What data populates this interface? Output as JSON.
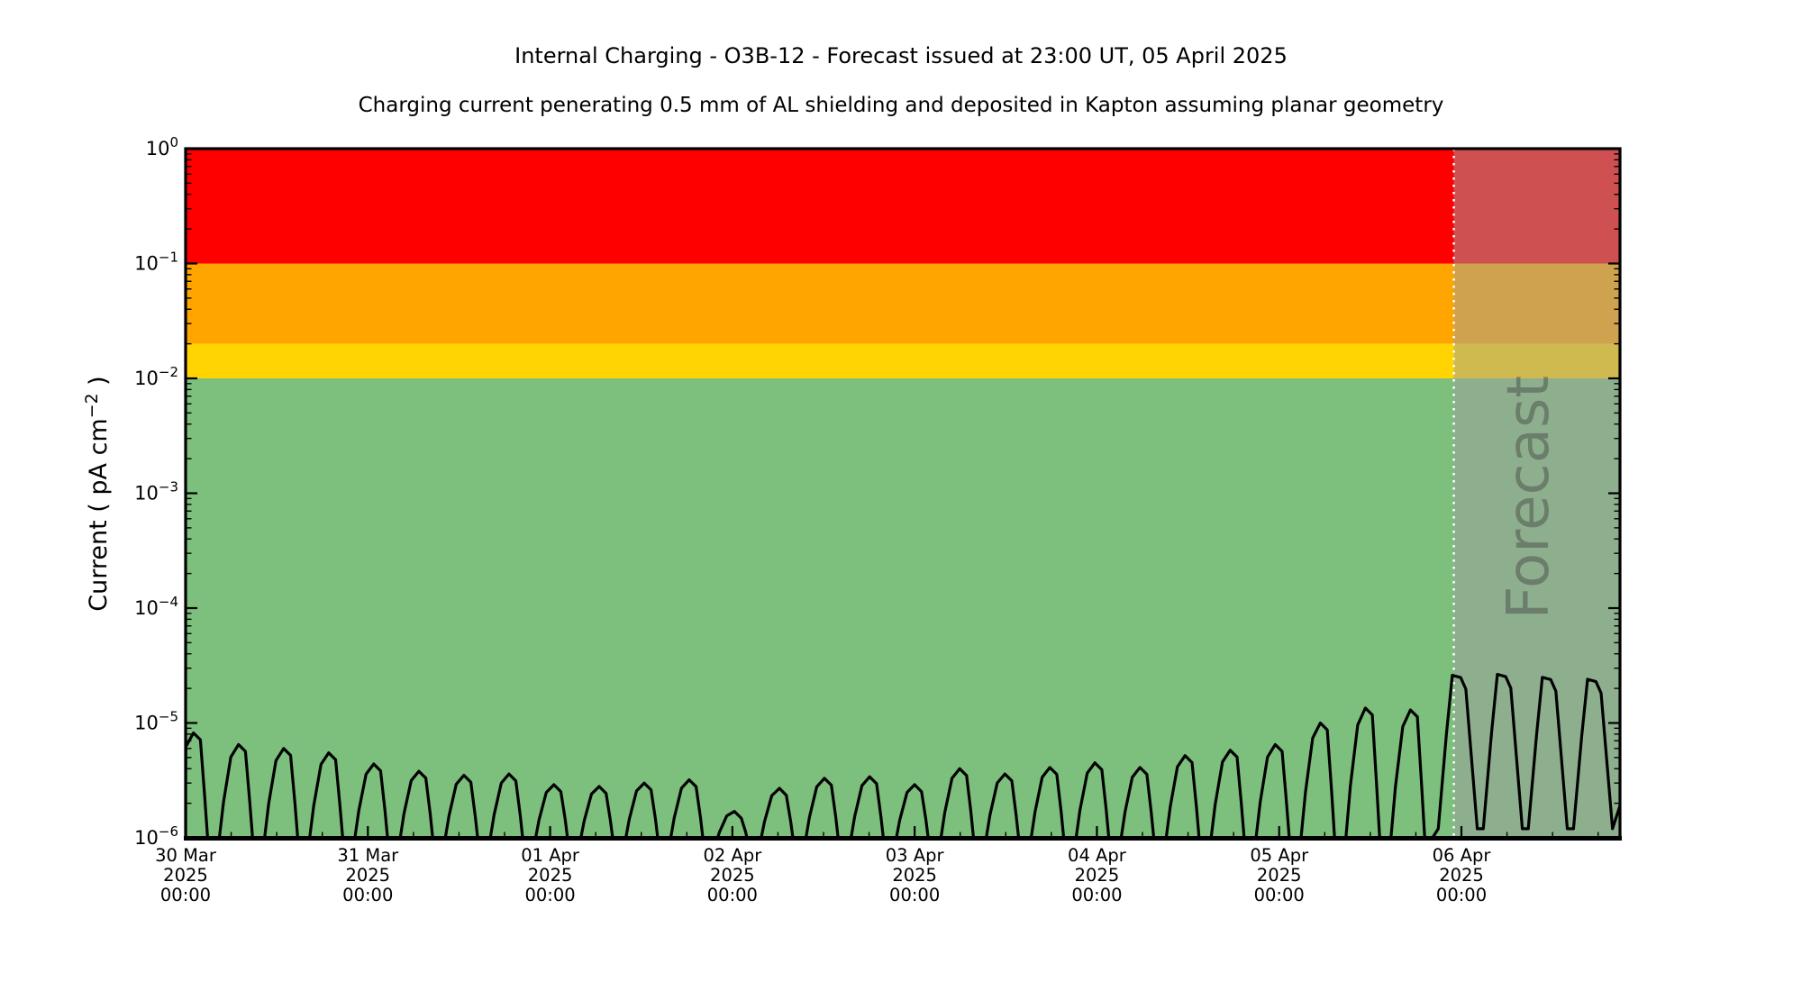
{
  "background": "#ffffff",
  "chart_data": {
    "type": "line",
    "title": "Internal Charging - O3B-12 - Forecast issued at 23:00 UT, 05 April 2025",
    "subtitle": "Charging current penerating 0.5 mm of AL shielding and deposited in Kapton assuming planar geometry",
    "ylabel_parts": [
      "Current ( pA cm",
      "−2",
      " )"
    ],
    "y_scale": "log",
    "ylim": [
      1e-06,
      1
    ],
    "y_tick_exponents": [
      0,
      -1,
      -2,
      -3,
      -4,
      -5,
      -6
    ],
    "x_range_days": [
      0,
      7.87
    ],
    "x_day_labels": [
      {
        "day": 0,
        "lines": [
          "30 Mar",
          "2025",
          "00:00"
        ]
      },
      {
        "day": 1,
        "lines": [
          "31 Mar",
          "2025",
          "00:00"
        ]
      },
      {
        "day": 2,
        "lines": [
          "01 Apr",
          "2025",
          "00:00"
        ]
      },
      {
        "day": 3,
        "lines": [
          "02 Apr",
          "2025",
          "00:00"
        ]
      },
      {
        "day": 4,
        "lines": [
          "03 Apr",
          "2025",
          "00:00"
        ]
      },
      {
        "day": 5,
        "lines": [
          "04 Apr",
          "2025",
          "00:00"
        ]
      },
      {
        "day": 6,
        "lines": [
          "05 Apr",
          "2025",
          "00:00"
        ]
      },
      {
        "day": 7,
        "lines": [
          "06 Apr",
          "2025",
          "00:00"
        ]
      }
    ],
    "bands": [
      {
        "name": "red",
        "from": 0.1,
        "to": 1,
        "color": "#ff0000"
      },
      {
        "name": "orange",
        "from": 0.02,
        "to": 0.1,
        "color": "#ffa500"
      },
      {
        "name": "yellow",
        "from": 0.01,
        "to": 0.02,
        "color": "#ffd400"
      },
      {
        "name": "green",
        "from": 1e-06,
        "to": 0.01,
        "color": "#7dbf7d"
      }
    ],
    "forecast": {
      "label": "Forecast",
      "start_day": 6.9583,
      "start_time": "23:00 UT, 05 April 2025",
      "overlay_color": "rgba(160,160,160,0.5)",
      "divider_color": "#ffffff",
      "watermark_color": "#3c3c3c"
    },
    "series": [
      {
        "name": "charging-current",
        "color": "#000000",
        "floor": 8e-07,
        "forecast_trough": 1.2e-06,
        "pulses": [
          {
            "t": 0.055,
            "v": 8.2e-06
          },
          {
            "t": 0.302,
            "v": 6.5e-06
          },
          {
            "t": 0.55,
            "v": 6e-06
          },
          {
            "t": 0.797,
            "v": 5.5e-06
          },
          {
            "t": 1.044,
            "v": 4.4e-06
          },
          {
            "t": 1.292,
            "v": 3.8e-06
          },
          {
            "t": 1.539,
            "v": 3.5e-06
          },
          {
            "t": 1.786,
            "v": 3.6e-06
          },
          {
            "t": 2.033,
            "v": 2.9e-06
          },
          {
            "t": 2.281,
            "v": 2.8e-06
          },
          {
            "t": 2.528,
            "v": 3e-06
          },
          {
            "t": 2.775,
            "v": 3.2e-06
          },
          {
            "t": 3.023,
            "v": 1.7e-06
          },
          {
            "t": 3.27,
            "v": 2.7e-06
          },
          {
            "t": 3.517,
            "v": 3.3e-06
          },
          {
            "t": 3.765,
            "v": 3.4e-06
          },
          {
            "t": 4.012,
            "v": 2.9e-06
          },
          {
            "t": 4.259,
            "v": 4e-06
          },
          {
            "t": 4.507,
            "v": 3.6e-06
          },
          {
            "t": 4.754,
            "v": 4.1e-06
          },
          {
            "t": 5.001,
            "v": 4.5e-06
          },
          {
            "t": 5.248,
            "v": 4.1e-06
          },
          {
            "t": 5.496,
            "v": 5.2e-06
          },
          {
            "t": 5.743,
            "v": 5.8e-06
          },
          {
            "t": 5.99,
            "v": 6.5e-06
          },
          {
            "t": 6.238,
            "v": 1e-05
          },
          {
            "t": 6.485,
            "v": 1.35e-05
          },
          {
            "t": 6.732,
            "v": 1.3e-05
          },
          {
            "t": 6.98,
            "v": 2.6e-05
          },
          {
            "t": 7.227,
            "v": 2.65e-05
          },
          {
            "t": 7.474,
            "v": 2.5e-05
          },
          {
            "t": 7.722,
            "v": 2.4e-05
          }
        ]
      }
    ],
    "legend": null,
    "grid": false
  }
}
